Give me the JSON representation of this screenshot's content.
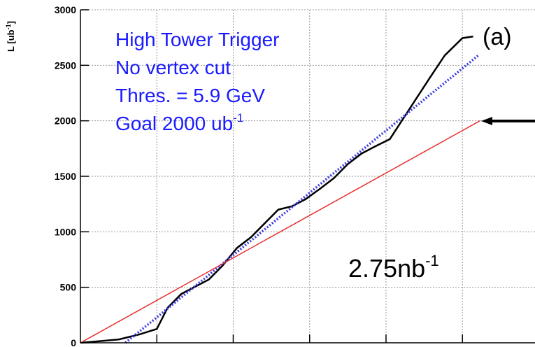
{
  "chart_data": {
    "type": "line",
    "ylabel": [
      "L [ub",
      "-1",
      "]"
    ],
    "panel_label": "(a)",
    "legend_lines": [
      {
        "text": "High Tower Trigger"
      },
      {
        "text": "No vertex cut"
      },
      {
        "text": "Thres. = 5.9 GeV"
      },
      {
        "text": "Goal 2000 ub",
        "sup": "-1"
      }
    ],
    "annotation": {
      "text": "2.75nb",
      "sup": "-1"
    },
    "xlim": [
      0,
      5.95
    ],
    "xticks": [
      1,
      2,
      3,
      4,
      5
    ],
    "ylim": [
      0,
      3000
    ],
    "yticks": [
      0,
      500,
      1000,
      1500,
      2000,
      2500,
      3000
    ],
    "grid": true,
    "series": [
      {
        "color": "#000000",
        "style": "solid",
        "x": [
          0,
          0.5,
          0.77,
          1.0,
          1.14,
          1.32,
          1.5,
          1.68,
          1.86,
          2.05,
          2.23,
          2.41,
          2.59,
          2.77,
          2.95,
          3.14,
          3.32,
          3.5,
          3.68,
          3.86,
          4.05,
          4.23,
          4.41,
          4.59,
          4.77,
          5.0,
          5.14
        ],
        "values": [
          0,
          30,
          75,
          125,
          315,
          440,
          505,
          570,
          695,
          855,
          950,
          1075,
          1200,
          1230,
          1295,
          1390,
          1485,
          1610,
          1705,
          1770,
          1835,
          2025,
          2215,
          2405,
          2590,
          2745,
          2760
        ]
      },
      {
        "color": "#3a3ae0",
        "style": "dotted",
        "x": [
          0.59,
          5.21
        ],
        "values": [
          0,
          2590
        ]
      },
      {
        "color": "#e83030",
        "style": "solid",
        "x": [
          0,
          5.23
        ],
        "values": [
          0,
          2000
        ]
      }
    ]
  }
}
